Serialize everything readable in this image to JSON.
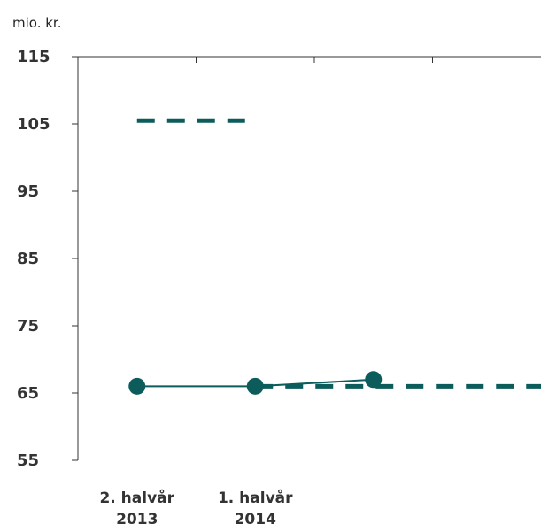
{
  "chart_data": {
    "type": "line",
    "unit_label": "mio. kr.",
    "ylim": [
      55,
      115
    ],
    "yticks": [
      115,
      105,
      95,
      85,
      75,
      65,
      55
    ],
    "x_slots": 4,
    "categories": [
      {
        "line1": "2. halvår",
        "line2": "2013"
      },
      {
        "line1": "1. halvår",
        "line2": "2014"
      }
    ],
    "series": [
      {
        "style": "solid-markers",
        "points": [
          {
            "x": 0,
            "y": 66
          },
          {
            "x": 1,
            "y": 66
          },
          {
            "x": 2,
            "y": 67
          }
        ]
      },
      {
        "style": "dashed",
        "segments": [
          {
            "x0": 0,
            "x1": 1,
            "y": 105.5
          },
          {
            "x0": 1,
            "x1": 3.5,
            "y": 66
          }
        ]
      }
    ],
    "colors": {
      "series": "#0d5c5c",
      "axis": "#333333",
      "text": "#333333"
    },
    "grid": false
  }
}
